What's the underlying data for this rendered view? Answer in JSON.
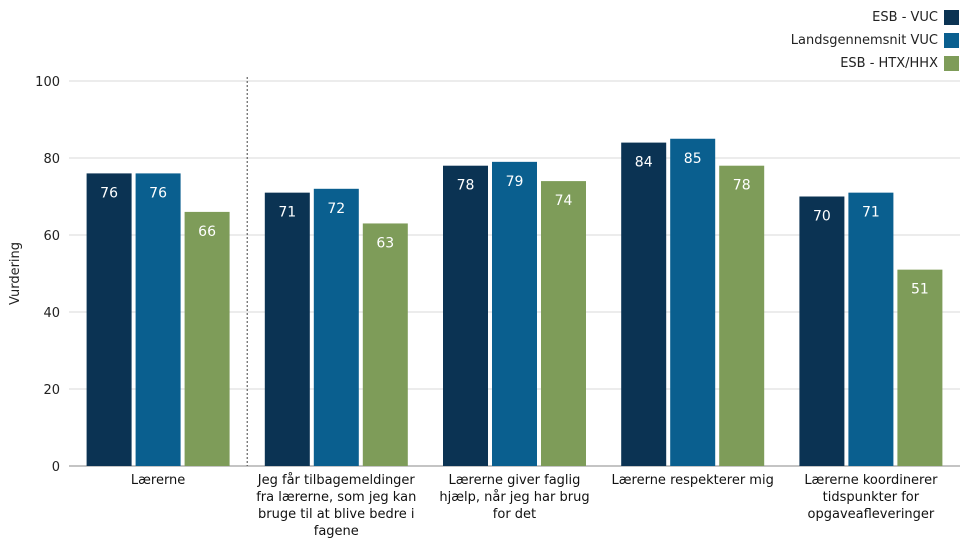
{
  "chart_data": {
    "type": "bar",
    "ylabel": "Vurdering",
    "ylim": [
      0,
      100
    ],
    "yticks": [
      0,
      20,
      40,
      60,
      80,
      100
    ],
    "grid": true,
    "legend_position": "top-right",
    "categories": [
      "Lærerne",
      "Jeg får tilbagemeldinger fra lærerne, som jeg kan bruge til at blive bedre i fagene",
      "Lærerne giver faglig hjælp, når jeg har brug for det",
      "Lærerne respekterer mig",
      "Lærerne koordinerer tidspunkter for opgaveafleveringer"
    ],
    "category_lines": [
      [
        "Lærerne"
      ],
      [
        "Jeg får tilbagemeldinger",
        "fra lærerne, som jeg kan",
        "bruge til at blive bedre i",
        "fagene"
      ],
      [
        "Lærerne giver faglig",
        "hjælp, når jeg har brug",
        "for det"
      ],
      [
        "Lærerne respekterer mig"
      ],
      [
        "Lærerne koordinerer",
        "tidspunkter for",
        "opgaveafleveringer"
      ]
    ],
    "series": [
      {
        "name": "ESB - VUC",
        "color": "#0b3353",
        "values": [
          76,
          71,
          78,
          84,
          70
        ]
      },
      {
        "name": "Landsgennemsnit VUC",
        "color": "#0a5f8f",
        "values": [
          76,
          72,
          79,
          85,
          71
        ]
      },
      {
        "name": "ESB - HTX/HHX",
        "color": "#7e9c59",
        "values": [
          66,
          63,
          74,
          78,
          51
        ]
      }
    ]
  }
}
